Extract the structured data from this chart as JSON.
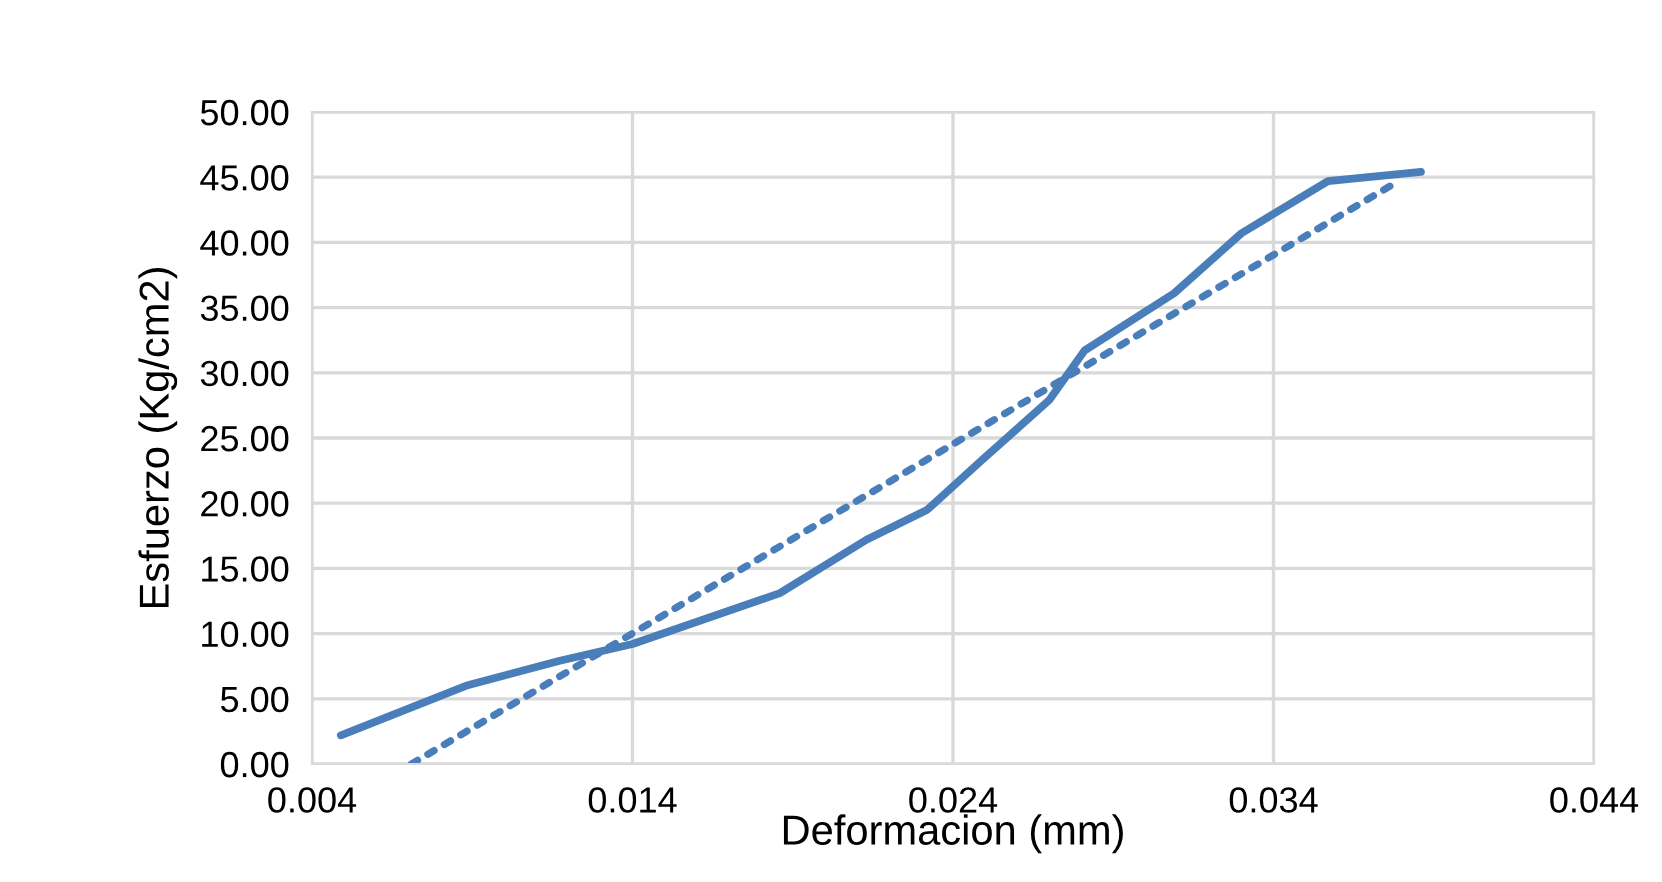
{
  "chart_data": {
    "type": "line",
    "xlabel": "Deformacion (mm)",
    "ylabel": "Esfuerzo (Kg/cm2)",
    "xlim": [
      0.004,
      0.044
    ],
    "xticks": [
      {
        "value": 0.004,
        "label": "0.004"
      },
      {
        "value": 0.014,
        "label": "0.014"
      },
      {
        "value": 0.024,
        "label": "0.024"
      },
      {
        "value": 0.034,
        "label": "0.034"
      },
      {
        "value": 0.044,
        "label": "0.044"
      }
    ],
    "ylim": [
      0,
      50
    ],
    "yticks": [
      {
        "value": 0,
        "label": "0.00"
      },
      {
        "value": 5,
        "label": "5.00"
      },
      {
        "value": 10,
        "label": "10.00"
      },
      {
        "value": 15,
        "label": "15.00"
      },
      {
        "value": 20,
        "label": "20.00"
      },
      {
        "value": 25,
        "label": "25.00"
      },
      {
        "value": 30,
        "label": "30.00"
      },
      {
        "value": 35,
        "label": "35.00"
      },
      {
        "value": 40,
        "label": "40.00"
      },
      {
        "value": 45,
        "label": "45.00"
      },
      {
        "value": 50,
        "label": "50.00"
      }
    ],
    "grid": true,
    "legend": false,
    "series": [
      {
        "color": "#4a7ebb",
        "line_style": "solid",
        "x": [
          0.0049,
          0.0088,
          0.0117,
          0.014,
          0.0186,
          0.0213,
          0.0232,
          0.0249,
          0.027,
          0.0281,
          0.0309,
          0.033,
          0.0357,
          0.0386
        ],
        "values": [
          2.2,
          6.0,
          7.9,
          9.2,
          13.1,
          17.2,
          19.5,
          23.3,
          27.9,
          31.7,
          36.1,
          40.7,
          44.7,
          45.4
        ]
      },
      {
        "color": "#4a7ebb",
        "line_style": "dotted",
        "x": [
          0.0071,
          0.0379
        ],
        "values": [
          0,
          44.7
        ]
      }
    ]
  }
}
